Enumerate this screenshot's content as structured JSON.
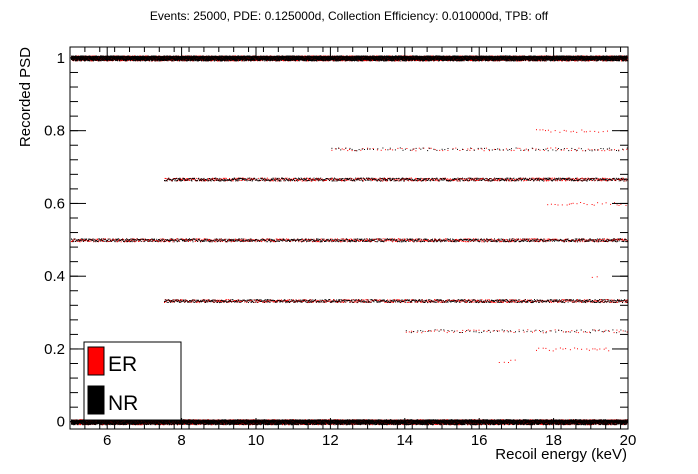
{
  "chart_data": {
    "type": "scatter",
    "title": "Events: 25000, PDE: 0.125000d, Collection Efficiency: 0.010000d, TPB: off",
    "xlabel": "Recoil energy (keV)",
    "ylabel": "Recorded PSD",
    "xlim": [
      5,
      20
    ],
    "ylim": [
      -0.02,
      1.03
    ],
    "x_ticks": [
      6,
      8,
      10,
      12,
      14,
      16,
      18,
      20
    ],
    "x_tick_labels": [
      "6",
      "8",
      "10",
      "12",
      "14",
      "16",
      "18",
      "20"
    ],
    "y_ticks": [
      0,
      0.2,
      0.4,
      0.6,
      0.8,
      1
    ],
    "y_tick_labels": [
      "0",
      "0.2",
      "0.4",
      "0.6",
      "0.8",
      "1"
    ],
    "grid": false,
    "legend_position": "bottom-left",
    "series": [
      {
        "name": "ER",
        "color": "#ff0000",
        "bands": [
          {
            "psd": 1.0,
            "x_range": [
              5,
              20
            ],
            "density": "dense"
          },
          {
            "psd": 0.0,
            "x_range": [
              5,
              20
            ],
            "density": "dense"
          },
          {
            "psd": 0.5,
            "x_range": [
              5,
              20
            ],
            "density": "medium"
          },
          {
            "psd": 0.667,
            "x_range": [
              7.5,
              20
            ],
            "density": "medium"
          },
          {
            "psd": 0.333,
            "x_range": [
              7.5,
              20
            ],
            "density": "medium"
          },
          {
            "psd": 0.75,
            "x_range": [
              12,
              20
            ],
            "density": "sparse"
          },
          {
            "psd": 0.25,
            "x_range": [
              14,
              20
            ],
            "density": "sparse"
          },
          {
            "psd": 0.6,
            "x_range": [
              17.8,
              20
            ],
            "density": "sparse"
          },
          {
            "psd": 0.8,
            "x_range": [
              17.5,
              19.5
            ],
            "density": "sparse"
          },
          {
            "psd": 0.2,
            "x_range": [
              17.5,
              19.5
            ],
            "density": "sparse"
          },
          {
            "psd": 0.167,
            "x_range": [
              16.5,
              17
            ],
            "density": "sparse"
          },
          {
            "psd": 0.4,
            "x_range": [
              19,
              19.2
            ],
            "density": "sparse"
          }
        ]
      },
      {
        "name": "NR",
        "color": "#000000",
        "bands": [
          {
            "psd": 1.0,
            "x_range": [
              5,
              20
            ],
            "density": "dense"
          },
          {
            "psd": 0.0,
            "x_range": [
              5,
              20
            ],
            "density": "dense"
          },
          {
            "psd": 0.5,
            "x_range": [
              5,
              20
            ],
            "density": "medium"
          },
          {
            "psd": 0.667,
            "x_range": [
              7.5,
              20
            ],
            "density": "medium"
          },
          {
            "psd": 0.333,
            "x_range": [
              7.5,
              20
            ],
            "density": "medium"
          },
          {
            "psd": 0.75,
            "x_range": [
              12,
              20
            ],
            "density": "sparse"
          },
          {
            "psd": 0.25,
            "x_range": [
              14,
              20
            ],
            "density": "sparse"
          }
        ]
      }
    ]
  }
}
